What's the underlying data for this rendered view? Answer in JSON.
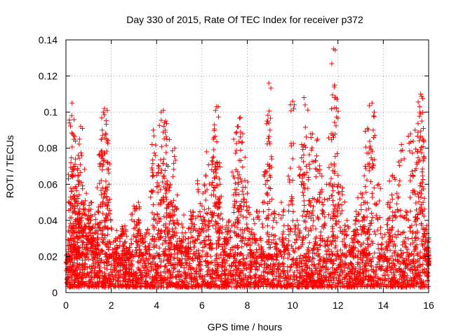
{
  "chart_data": {
    "type": "scatter",
    "title": "Day 330 of 2015, Rate Of TEC Index for receiver p372",
    "xlabel": "GPS time / hours",
    "ylabel": "ROTI / TECUs",
    "xlim": [
      0,
      16
    ],
    "ylim": [
      0,
      0.14
    ],
    "xticks": [
      0,
      2,
      4,
      6,
      8,
      10,
      12,
      14,
      16
    ],
    "yticks": [
      0,
      0.02,
      0.04,
      0.06,
      0.08,
      0.1,
      0.12,
      0.14
    ],
    "xtick_labels": [
      "0",
      "2",
      "4",
      "6",
      "8",
      "10",
      "12",
      "14",
      "16"
    ],
    "ytick_labels": [
      "0",
      "0.02",
      "0.04",
      "0.06",
      "0.08",
      "0.1",
      "0.12",
      "0.14"
    ],
    "grid": true,
    "marker": "plus",
    "color": "#ff0000",
    "series": [
      {
        "name": "ROTI",
        "points": [
          [
            0.1,
            0.012
          ],
          [
            0.15,
            0.018
          ],
          [
            0.2,
            0.03
          ],
          [
            0.22,
            0.072
          ],
          [
            0.25,
            0.098
          ],
          [
            0.27,
            0.105
          ],
          [
            0.3,
            0.088
          ],
          [
            0.32,
            0.065
          ],
          [
            0.35,
            0.045
          ],
          [
            0.4,
            0.07
          ],
          [
            0.45,
            0.025
          ],
          [
            0.5,
            0.04
          ],
          [
            0.55,
            0.06
          ],
          [
            0.6,
            0.085
          ],
          [
            0.65,
            0.092
          ],
          [
            0.7,
            0.076
          ],
          [
            0.75,
            0.05
          ],
          [
            0.8,
            0.035
          ],
          [
            0.9,
            0.055
          ],
          [
            1.0,
            0.045
          ],
          [
            1.1,
            0.04
          ],
          [
            1.2,
            0.03
          ],
          [
            1.3,
            0.038
          ],
          [
            1.4,
            0.045
          ],
          [
            1.5,
            0.07
          ],
          [
            1.55,
            0.078
          ],
          [
            1.6,
            0.09
          ],
          [
            1.65,
            0.1
          ],
          [
            1.7,
            0.102
          ],
          [
            1.75,
            0.088
          ],
          [
            1.8,
            0.085
          ],
          [
            1.85,
            0.072
          ],
          [
            1.9,
            0.06
          ],
          [
            2.0,
            0.02
          ],
          [
            2.2,
            0.03
          ],
          [
            2.4,
            0.015
          ],
          [
            2.6,
            0.037
          ],
          [
            2.8,
            0.025
          ],
          [
            3.0,
            0.048
          ],
          [
            3.2,
            0.05
          ],
          [
            3.4,
            0.03
          ],
          [
            3.6,
            0.035
          ],
          [
            3.8,
            0.082
          ],
          [
            3.85,
            0.09
          ],
          [
            4.0,
            0.065
          ],
          [
            4.1,
            0.07
          ],
          [
            4.2,
            0.1
          ],
          [
            4.3,
            0.101
          ],
          [
            4.4,
            0.095
          ],
          [
            4.45,
            0.085
          ],
          [
            4.5,
            0.07
          ],
          [
            4.6,
            0.06
          ],
          [
            4.7,
            0.048
          ],
          [
            4.8,
            0.08
          ],
          [
            4.9,
            0.04
          ],
          [
            5.0,
            0.03
          ],
          [
            5.2,
            0.043
          ],
          [
            5.4,
            0.03
          ],
          [
            5.6,
            0.045
          ],
          [
            5.8,
            0.062
          ],
          [
            6.0,
            0.048
          ],
          [
            6.1,
            0.06
          ],
          [
            6.2,
            0.078
          ],
          [
            6.3,
            0.04
          ],
          [
            6.5,
            0.085
          ],
          [
            6.55,
            0.093
          ],
          [
            6.6,
            0.101
          ],
          [
            6.65,
            0.103
          ],
          [
            6.7,
            0.07
          ],
          [
            6.8,
            0.05
          ],
          [
            7.0,
            0.03
          ],
          [
            7.2,
            0.04
          ],
          [
            7.4,
            0.085
          ],
          [
            7.5,
            0.068
          ],
          [
            7.6,
            0.092
          ],
          [
            7.7,
            0.097
          ],
          [
            7.8,
            0.088
          ],
          [
            7.9,
            0.075
          ],
          [
            8.0,
            0.055
          ],
          [
            8.2,
            0.035
          ],
          [
            8.4,
            0.045
          ],
          [
            8.6,
            0.03
          ],
          [
            8.8,
            0.067
          ],
          [
            8.9,
            0.095
          ],
          [
            8.95,
            0.116
          ],
          [
            9.0,
            0.09
          ],
          [
            9.2,
            0.045
          ],
          [
            9.5,
            0.05
          ],
          [
            9.7,
            0.03
          ],
          [
            9.9,
            0.069
          ],
          [
            10.0,
            0.106
          ],
          [
            10.2,
            0.04
          ],
          [
            10.4,
            0.082
          ],
          [
            10.5,
            0.108
          ],
          [
            10.55,
            0.104
          ],
          [
            10.6,
            0.07
          ],
          [
            10.8,
            0.088
          ],
          [
            11.0,
            0.073
          ],
          [
            11.1,
            0.085
          ],
          [
            11.2,
            0.068
          ],
          [
            11.3,
            0.05
          ],
          [
            11.5,
            0.06
          ],
          [
            11.7,
            0.088
          ],
          [
            11.8,
            0.135
          ],
          [
            11.85,
            0.115
          ],
          [
            11.9,
            0.108
          ],
          [
            12.0,
            0.065
          ],
          [
            12.2,
            0.058
          ],
          [
            12.4,
            0.04
          ],
          [
            12.6,
            0.025
          ],
          [
            12.8,
            0.045
          ],
          [
            13.0,
            0.055
          ],
          [
            13.2,
            0.07
          ],
          [
            13.3,
            0.091
          ],
          [
            13.4,
            0.08
          ],
          [
            13.5,
            0.105
          ],
          [
            13.6,
            0.1
          ],
          [
            13.8,
            0.06
          ],
          [
            14.0,
            0.02
          ],
          [
            14.2,
            0.04
          ],
          [
            14.4,
            0.065
          ],
          [
            14.6,
            0.055
          ],
          [
            14.8,
            0.082
          ],
          [
            15.0,
            0.045
          ],
          [
            15.2,
            0.088
          ],
          [
            15.4,
            0.09
          ],
          [
            15.5,
            0.078
          ],
          [
            15.6,
            0.103
          ],
          [
            15.65,
            0.11
          ],
          [
            15.7,
            0.095
          ],
          [
            15.75,
            0.085
          ],
          [
            15.8,
            0.075
          ],
          [
            15.9,
            0.035
          ],
          [
            15.95,
            0.025
          ],
          [
            16.0,
            0.015
          ],
          [
            0.6,
            0.045
          ],
          [
            2.5,
            0.035
          ],
          [
            3.2,
            0.04
          ],
          [
            5.5,
            0.045
          ],
          [
            6.8,
            0.06
          ],
          [
            7.6,
            0.06
          ],
          [
            9.0,
            0.02
          ],
          [
            10.8,
            0.05
          ],
          [
            12.8,
            0.035
          ],
          [
            14.3,
            0.05
          ],
          [
            15.3,
            0.065
          ],
          [
            13.2,
            0.05
          ],
          [
            11.8,
            0.045
          ],
          [
            4.4,
            0.055
          ],
          [
            1.1,
            0.05
          ]
        ],
        "baseline_band": [
          0.003,
          0.022
        ]
      }
    ]
  }
}
